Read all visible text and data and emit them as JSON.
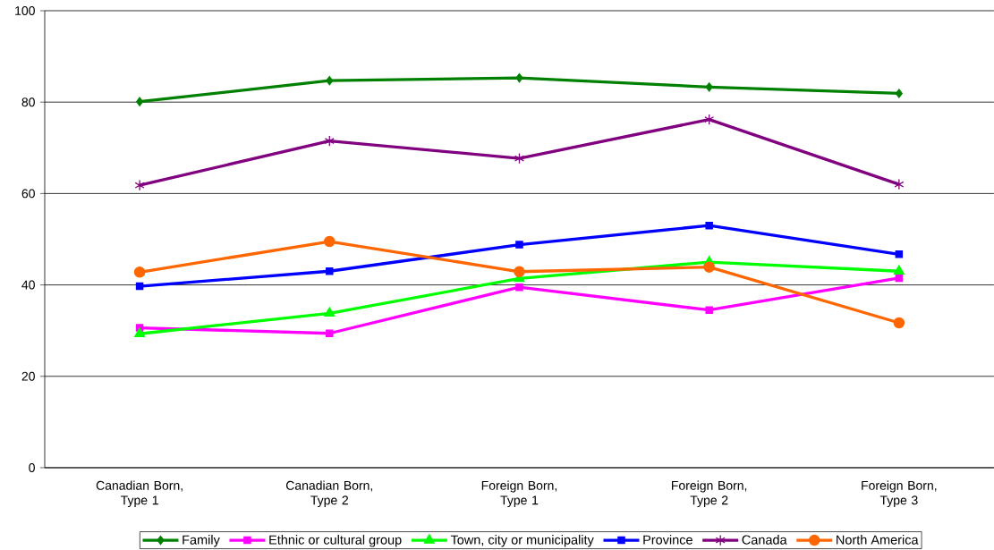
{
  "chart_data": {
    "type": "line",
    "categories": [
      "Canadian Born, Type 1",
      "Canadian Born, Type 2",
      "Foreign Born, Type 1",
      "Foreign Born, Type 2",
      "Foreign Born, Type 3"
    ],
    "series": [
      {
        "name": "Family",
        "color": "#008000",
        "marker": "diamond",
        "values": [
          80.1,
          84.7,
          85.3,
          83.3,
          81.9
        ]
      },
      {
        "name": "Ethnic or cultural group",
        "color": "#ff00ff",
        "marker": "square",
        "values": [
          30.6,
          29.4,
          39.5,
          34.5,
          41.5
        ]
      },
      {
        "name": "Town, city or municipality",
        "color": "#00ff00",
        "marker": "triangle",
        "values": [
          29.3,
          33.8,
          41.4,
          45.0,
          43.0
        ]
      },
      {
        "name": "Province",
        "color": "#0000ff",
        "marker": "square",
        "values": [
          39.7,
          43.0,
          48.8,
          53.0,
          46.7
        ]
      },
      {
        "name": "Canada",
        "color": "#800080",
        "marker": "cross",
        "values": [
          61.8,
          71.5,
          67.7,
          76.2,
          62.0
        ]
      },
      {
        "name": "North America",
        "color": "#ff6600",
        "marker": "circle",
        "values": [
          42.8,
          49.5,
          42.9,
          43.9,
          31.7
        ]
      }
    ],
    "ylim": [
      0,
      100
    ],
    "yticks": [
      0,
      20,
      40,
      60,
      80,
      100
    ],
    "grid": "y",
    "legend": "bottom"
  }
}
